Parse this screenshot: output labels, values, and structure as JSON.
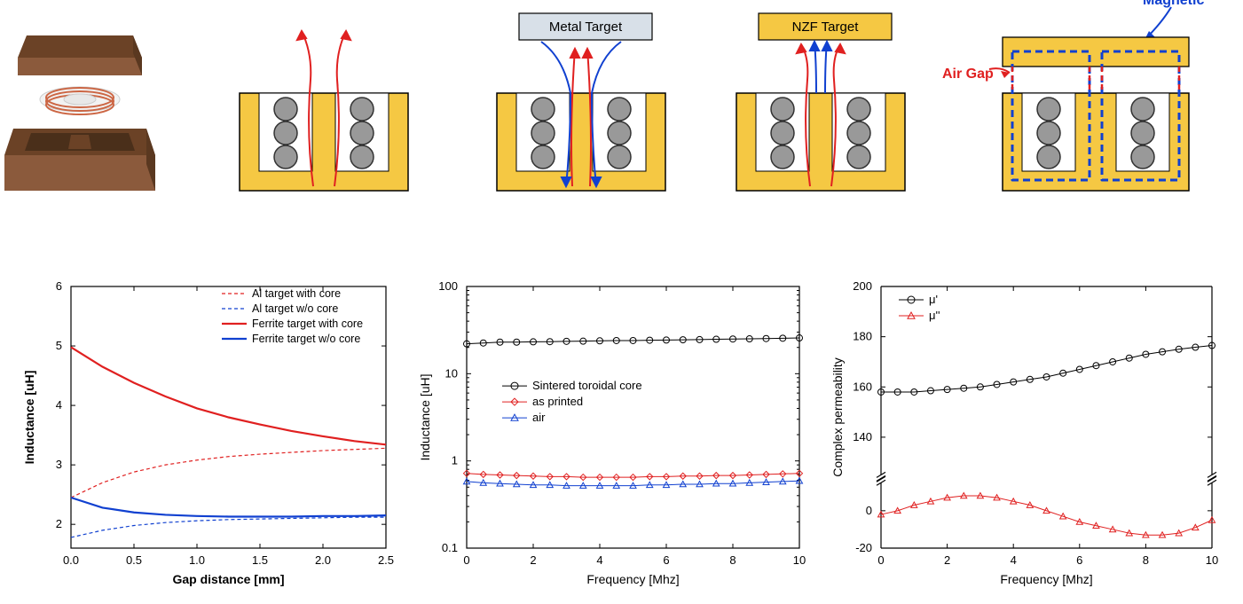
{
  "diagrams": {
    "metal_target_label": "Metal Target",
    "nzf_target_label": "NZF Target",
    "magnetic_path_label": "Magnetic path",
    "air_gap_label": "Air Gap",
    "pot_core_color": "#f5c843",
    "pot_core_stroke": "#000000",
    "coil_color": "#999999",
    "coil_stroke": "#333333",
    "flux_red": "#e02020",
    "flux_blue": "#1040d0",
    "metal_target_fill": "#d8e0e8",
    "nzf_target_fill": "#f5c843",
    "box3d_color": "#8b5a3c",
    "magnetic_path_color": "#1040d0",
    "air_gap_color": "#e02020"
  },
  "chart1": {
    "type": "line",
    "title": "",
    "xlabel": "Gap distance [mm]",
    "ylabel": "Inductance [uH]",
    "xlim": [
      0.0,
      2.5
    ],
    "ylim": [
      1.6,
      6.0
    ],
    "xtick_step": 0.5,
    "yticks": [
      2,
      3,
      4,
      5,
      6
    ],
    "background_color": "#ffffff",
    "axis_color": "#000000",
    "series": [
      {
        "name": "Al target with core",
        "color": "#e02020",
        "dash": "4,3",
        "width": 1.2,
        "x": [
          0.0,
          0.25,
          0.5,
          0.75,
          1.0,
          1.25,
          1.5,
          1.75,
          2.0,
          2.25,
          2.5
        ],
        "y": [
          2.45,
          2.7,
          2.88,
          3.0,
          3.08,
          3.14,
          3.18,
          3.21,
          3.24,
          3.26,
          3.28
        ]
      },
      {
        "name": "Al target w/o core",
        "color": "#1040d0",
        "dash": "4,3",
        "width": 1.2,
        "x": [
          0.0,
          0.25,
          0.5,
          0.75,
          1.0,
          1.25,
          1.5,
          1.75,
          2.0,
          2.25,
          2.5
        ],
        "y": [
          1.78,
          1.9,
          1.98,
          2.03,
          2.06,
          2.08,
          2.09,
          2.1,
          2.11,
          2.12,
          2.12
        ]
      },
      {
        "name": "Ferrite target with core",
        "color": "#e02020",
        "dash": "none",
        "width": 2.2,
        "x": [
          0.0,
          0.25,
          0.5,
          0.75,
          1.0,
          1.25,
          1.5,
          1.75,
          2.0,
          2.25,
          2.5
        ],
        "y": [
          4.98,
          4.65,
          4.38,
          4.15,
          3.95,
          3.8,
          3.68,
          3.57,
          3.48,
          3.4,
          3.34
        ]
      },
      {
        "name": "Ferrite target w/o core",
        "color": "#1040d0",
        "dash": "none",
        "width": 2.2,
        "x": [
          0.0,
          0.25,
          0.5,
          0.75,
          1.0,
          1.25,
          1.5,
          1.75,
          2.0,
          2.25,
          2.5
        ],
        "y": [
          2.45,
          2.28,
          2.2,
          2.16,
          2.14,
          2.13,
          2.13,
          2.13,
          2.14,
          2.14,
          2.15
        ]
      }
    ]
  },
  "chart2": {
    "type": "line",
    "xlabel": "Frequency [Mhz]",
    "ylabel": "Inductance [uH]",
    "xlim": [
      0,
      10
    ],
    "ylog": true,
    "ylim": [
      0.1,
      100
    ],
    "xtick_step": 2,
    "yticks": [
      0.1,
      1,
      10,
      100
    ],
    "background_color": "#ffffff",
    "axis_color": "#000000",
    "series": [
      {
        "name": "Sintered toroidal core",
        "color": "#000000",
        "marker": "circle-open",
        "width": 1.0,
        "x": [
          0,
          0.5,
          1,
          1.5,
          2,
          2.5,
          3,
          3.5,
          4,
          4.5,
          5,
          5.5,
          6,
          6.5,
          7,
          7.5,
          8,
          8.5,
          9,
          9.5,
          10
        ],
        "y": [
          22,
          22.5,
          23,
          23,
          23.2,
          23.3,
          23.5,
          23.6,
          23.8,
          24,
          24,
          24.2,
          24.3,
          24.5,
          24.6,
          24.8,
          25,
          25.1,
          25.3,
          25.5,
          25.7
        ]
      },
      {
        "name": "as printed",
        "color": "#e02020",
        "marker": "diamond-open",
        "width": 1.0,
        "x": [
          0,
          0.5,
          1,
          1.5,
          2,
          2.5,
          3,
          3.5,
          4,
          4.5,
          5,
          5.5,
          6,
          6.5,
          7,
          7.5,
          8,
          8.5,
          9,
          9.5,
          10
        ],
        "y": [
          0.72,
          0.7,
          0.69,
          0.68,
          0.67,
          0.66,
          0.66,
          0.65,
          0.65,
          0.65,
          0.65,
          0.66,
          0.66,
          0.67,
          0.67,
          0.68,
          0.68,
          0.69,
          0.7,
          0.71,
          0.72
        ]
      },
      {
        "name": "air",
        "color": "#1040d0",
        "marker": "triangle-open",
        "width": 1.0,
        "x": [
          0,
          0.5,
          1,
          1.5,
          2,
          2.5,
          3,
          3.5,
          4,
          4.5,
          5,
          5.5,
          6,
          6.5,
          7,
          7.5,
          8,
          8.5,
          9,
          9.5,
          10
        ],
        "y": [
          0.58,
          0.56,
          0.55,
          0.54,
          0.53,
          0.53,
          0.52,
          0.52,
          0.52,
          0.52,
          0.52,
          0.53,
          0.53,
          0.54,
          0.54,
          0.55,
          0.55,
          0.56,
          0.57,
          0.58,
          0.59
        ]
      }
    ]
  },
  "chart3": {
    "type": "line",
    "xlabel": "Frequency [Mhz]",
    "ylabel": "Complex permeability",
    "xlim": [
      0,
      10
    ],
    "ylim_lower": [
      -20,
      15
    ],
    "ylim_upper": [
      125,
      200
    ],
    "xtick_step": 2,
    "yticks": [
      -20,
      0,
      140,
      160,
      180,
      200
    ],
    "background_color": "#ffffff",
    "axis_color": "#000000",
    "series": [
      {
        "name": "μ'",
        "color": "#000000",
        "marker": "circle-open",
        "width": 1.0,
        "x": [
          0,
          0.5,
          1,
          1.5,
          2,
          2.5,
          3,
          3.5,
          4,
          4.5,
          5,
          5.5,
          6,
          6.5,
          7,
          7.5,
          8,
          8.5,
          9,
          9.5,
          10
        ],
        "y": [
          158,
          158,
          158,
          158.5,
          159,
          159.5,
          160,
          161,
          162,
          163,
          164,
          165.5,
          167,
          168.5,
          170,
          171.5,
          173,
          174,
          175,
          175.8,
          176.5
        ]
      },
      {
        "name": "μ''",
        "color": "#e02020",
        "marker": "triangle-open",
        "width": 1.0,
        "x": [
          0,
          0.5,
          1,
          1.5,
          2,
          2.5,
          3,
          3.5,
          4,
          4.5,
          5,
          5.5,
          6,
          6.5,
          7,
          7.5,
          8,
          8.5,
          9,
          9.5,
          10
        ],
        "y": [
          -2,
          0,
          3,
          5,
          7,
          8,
          8,
          7,
          5,
          3,
          0,
          -3,
          -6,
          -8,
          -10,
          -12,
          -13,
          -13,
          -12,
          -9,
          -5
        ]
      }
    ]
  }
}
